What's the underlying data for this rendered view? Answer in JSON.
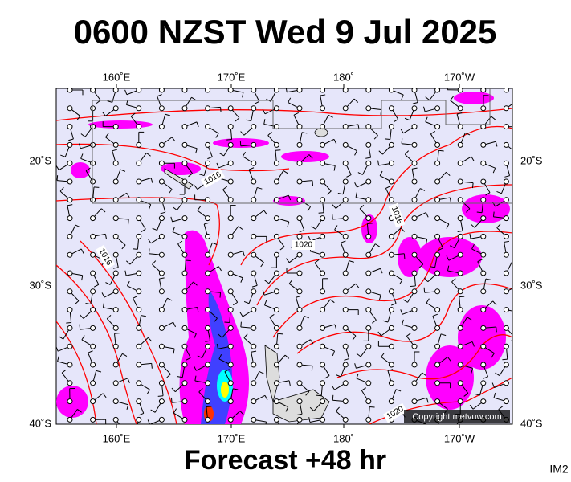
{
  "header": {
    "title": "0600 NZST Wed 9 Jul 2025"
  },
  "map": {
    "lon_labels": [
      "160˚E",
      "170˚E",
      "180˚",
      "170˚W"
    ],
    "lat_labels": [
      "20˚S",
      "30˚S",
      "40˚S"
    ],
    "isobar_labels": [
      "1016",
      "1016",
      "1016",
      "1020",
      "1020"
    ],
    "copyright": "Copyright metvuw.com"
  },
  "footer": {
    "forecast": "Forecast +48 hr",
    "image_id": "IM2"
  }
}
